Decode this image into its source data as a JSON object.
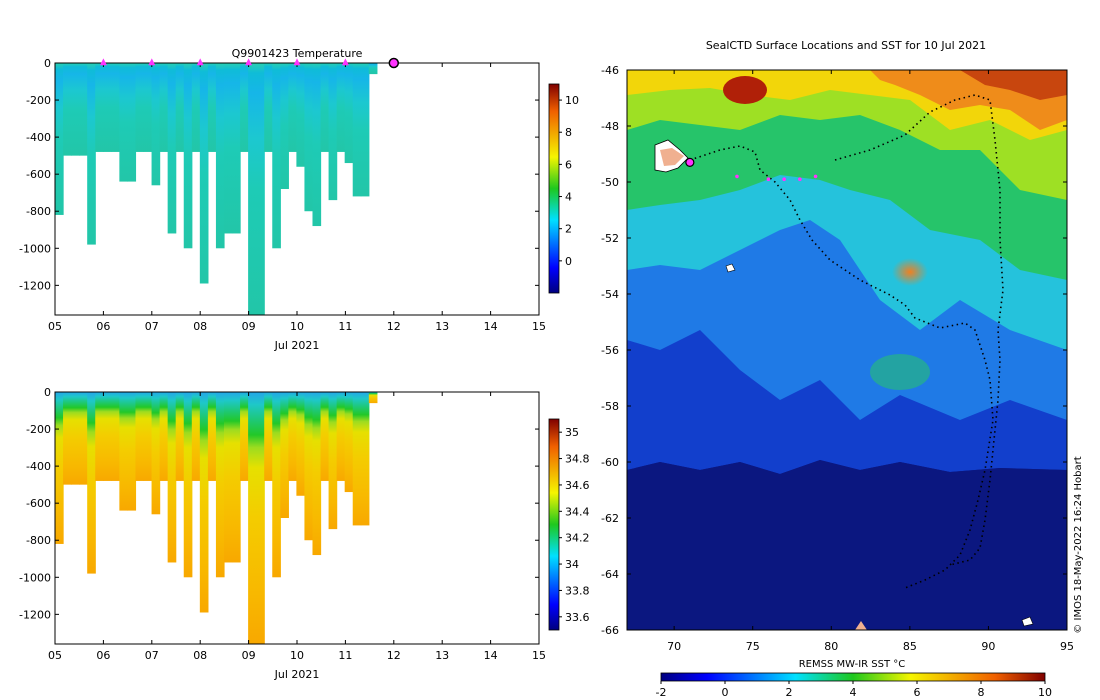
{
  "colors": {
    "axis": "#000000",
    "ocean_deep_cold": "#0b1780",
    "marker_magenta": "#ff33ff",
    "marker_edge": "#000000"
  },
  "chart_data": [
    {
      "type": "heatmap",
      "title": "Q9901423  Temperature",
      "xlabel": "Jul 2021",
      "ylabel": "",
      "x_ticks": [
        "05",
        "06",
        "07",
        "08",
        "09",
        "10",
        "11",
        "12",
        "13",
        "14",
        "15"
      ],
      "xlim": [
        5,
        15
      ],
      "y_ticks": [
        "0",
        "-200",
        "-400",
        "-600",
        "-800",
        "-1000",
        "-1200"
      ],
      "ylim": [
        -1360,
        0
      ],
      "colorbar_ticks": [
        "10",
        "8",
        "6",
        "4",
        "2",
        "0"
      ],
      "colorbar_range": [
        -2,
        11
      ],
      "surface_markers_days": [
        6,
        7,
        8,
        9,
        10,
        11
      ],
      "current_position_day": 12,
      "profile_depths_m": [
        820,
        500,
        500,
        500,
        980,
        480,
        480,
        480,
        640,
        640,
        480,
        480,
        660,
        480,
        920,
        480,
        1000,
        480,
        1190,
        480,
        1000,
        920,
        920,
        480,
        1360,
        1360,
        480,
        1000,
        680,
        480,
        560,
        800,
        880,
        480,
        740,
        480,
        540,
        720,
        720,
        60
      ]
    },
    {
      "type": "heatmap",
      "title": "",
      "xlabel": "Jul 2021",
      "ylabel": "",
      "x_ticks": [
        "05",
        "06",
        "07",
        "08",
        "09",
        "10",
        "11",
        "12",
        "13",
        "14",
        "15"
      ],
      "xlim": [
        5,
        15
      ],
      "y_ticks": [
        "0",
        "-200",
        "-400",
        "-600",
        "-800",
        "-1000",
        "-1200"
      ],
      "ylim": [
        -1360,
        0
      ],
      "colorbar_ticks": [
        "35",
        "34.8",
        "34.6",
        "34.4",
        "34.2",
        "34",
        "33.8",
        "33.6"
      ],
      "colorbar_range": [
        33.5,
        35.1
      ]
    },
    {
      "type": "map",
      "title": "SealCTD Surface Locations and SST for 10 Jul 2021",
      "x_ticks": [
        "70",
        "75",
        "80",
        "85",
        "90",
        "95"
      ],
      "xlim": [
        67,
        95
      ],
      "y_ticks": [
        "-46",
        "-48",
        "-50",
        "-52",
        "-54",
        "-56",
        "-58",
        "-60",
        "-62",
        "-64",
        "-66"
      ],
      "ylim": [
        -66,
        -46
      ],
      "colorbar_label": "REMSS MW-IR SST °C",
      "colorbar_ticks": [
        "-2",
        "0",
        "2",
        "4",
        "6",
        "8",
        "10"
      ],
      "colorbar_range": [
        -2,
        10
      ],
      "credit": "© IMOS 18-May-2022 16:24 Hobart",
      "seal_position": {
        "lon": 71,
        "lat": -49.3
      }
    }
  ]
}
